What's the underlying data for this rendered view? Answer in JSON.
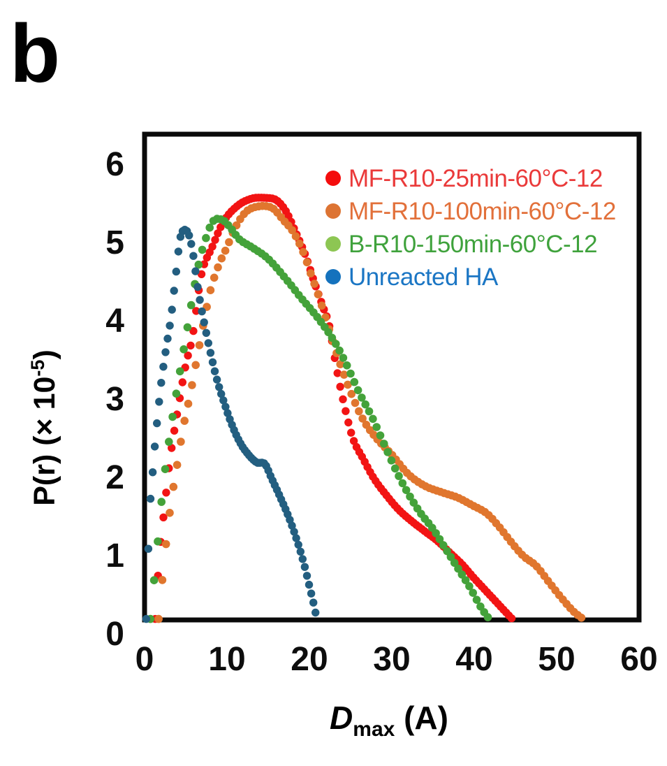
{
  "panel_label": "b",
  "chart_data": {
    "type": "scatter",
    "title": "",
    "xlabel": {
      "symbol": "D",
      "subscript": "max",
      "unit": " (A)"
    },
    "ylabel": {
      "prefix": "P(r) (× 10",
      "superscript": "-5",
      "suffix": ")"
    },
    "xlim": [
      0,
      60
    ],
    "ylim": [
      0,
      6
    ],
    "x_ticks": [
      0,
      10,
      20,
      30,
      40,
      50,
      60
    ],
    "y_ticks": [
      0,
      1,
      2,
      3,
      4,
      5,
      6
    ],
    "grid": false,
    "legend_position": "top-right-inside",
    "axis_color": "#0a0a0a",
    "series": [
      {
        "name": "MF-R10-25min-60°C-12",
        "curve_color": "#f21414",
        "legend_dot_color": "#f40d0d",
        "text_color": "#ea3a3a",
        "marker_step": 0.33,
        "marker_radius": 5.7,
        "points": [
          [
            1.3,
            0.2
          ],
          [
            1.8,
            1.0
          ],
          [
            2.4,
            1.6
          ],
          [
            3.1,
            2.25
          ],
          [
            4.0,
            2.85
          ],
          [
            5.0,
            3.45
          ],
          [
            5.8,
            3.8
          ],
          [
            6.9,
            4.6
          ],
          [
            8.2,
            4.95
          ],
          [
            9.6,
            5.28
          ],
          [
            11.3,
            5.48
          ],
          [
            13.0,
            5.57
          ],
          [
            14.5,
            5.58
          ],
          [
            16.0,
            5.55
          ],
          [
            17.2,
            5.4
          ],
          [
            18.3,
            5.15
          ],
          [
            19.5,
            4.85
          ],
          [
            20.6,
            4.5
          ],
          [
            21.6,
            4.2
          ],
          [
            22.4,
            3.95
          ],
          [
            23.3,
            3.4
          ],
          [
            24.3,
            2.9
          ],
          [
            25.3,
            2.5
          ],
          [
            26.5,
            2.25
          ],
          [
            27.8,
            2.0
          ],
          [
            29.2,
            1.8
          ],
          [
            30.8,
            1.6
          ],
          [
            32.4,
            1.45
          ],
          [
            34.0,
            1.32
          ],
          [
            35.5,
            1.2
          ],
          [
            37.0,
            1.05
          ],
          [
            38.5,
            0.9
          ],
          [
            40.0,
            0.72
          ],
          [
            41.5,
            0.55
          ],
          [
            43.0,
            0.38
          ],
          [
            44.6,
            0.2
          ]
        ]
      },
      {
        "name": "MF-R10-100min-60°C-12",
        "curve_color": "#e0762e",
        "legend_dot_color": "#dd7433",
        "text_color": "#e2703a",
        "marker_step": 0.45,
        "marker_radius": 5.8,
        "points": [
          [
            1.7,
            0.2
          ],
          [
            2.2,
            0.75
          ],
          [
            2.7,
            1.25
          ],
          [
            3.3,
            1.75
          ],
          [
            4.0,
            2.2
          ],
          [
            4.7,
            2.65
          ],
          [
            5.5,
            3.05
          ],
          [
            6.3,
            3.5
          ],
          [
            7.2,
            4.0
          ],
          [
            8.0,
            4.4
          ],
          [
            9.0,
            4.72
          ],
          [
            10.0,
            4.95
          ],
          [
            11.0,
            5.2
          ],
          [
            12.3,
            5.4
          ],
          [
            13.8,
            5.47
          ],
          [
            15.5,
            5.45
          ],
          [
            16.8,
            5.3
          ],
          [
            18.0,
            5.15
          ],
          [
            19.2,
            4.9
          ],
          [
            20.2,
            4.6
          ],
          [
            21.2,
            4.3
          ],
          [
            22.4,
            3.9
          ],
          [
            23.6,
            3.5
          ],
          [
            25.0,
            3.1
          ],
          [
            26.5,
            2.75
          ],
          [
            28.2,
            2.5
          ],
          [
            30.0,
            2.3
          ],
          [
            32.0,
            2.05
          ],
          [
            34.0,
            1.9
          ],
          [
            36.0,
            1.82
          ],
          [
            38.0,
            1.75
          ],
          [
            39.8,
            1.65
          ],
          [
            41.5,
            1.55
          ],
          [
            43.0,
            1.38
          ],
          [
            44.5,
            1.18
          ],
          [
            46.0,
            1.0
          ],
          [
            47.5,
            0.88
          ],
          [
            49.0,
            0.68
          ],
          [
            50.5,
            0.48
          ],
          [
            52.0,
            0.3
          ],
          [
            53.2,
            0.2
          ]
        ]
      },
      {
        "name": "B-R10-150min-60°C-12",
        "curve_color": "#44a23a",
        "legend_dot_color": "#8dc653",
        "text_color": "#3fa23c",
        "marker_step": 0.45,
        "marker_radius": 5.8,
        "points": [
          [
            0.7,
            0.2
          ],
          [
            1.2,
            0.75
          ],
          [
            1.7,
            1.3
          ],
          [
            2.2,
            1.85
          ],
          [
            2.8,
            2.35
          ],
          [
            3.5,
            2.85
          ],
          [
            4.2,
            3.3
          ],
          [
            5.0,
            3.8
          ],
          [
            5.8,
            4.3
          ],
          [
            6.6,
            4.75
          ],
          [
            7.4,
            5.05
          ],
          [
            8.3,
            5.28
          ],
          [
            9.4,
            5.3
          ],
          [
            10.4,
            5.2
          ],
          [
            11.5,
            5.05
          ],
          [
            13.0,
            4.95
          ],
          [
            15.0,
            4.8
          ],
          [
            17.5,
            4.5
          ],
          [
            19.0,
            4.3
          ],
          [
            21.0,
            4.05
          ],
          [
            23.0,
            3.75
          ],
          [
            24.5,
            3.45
          ],
          [
            26.0,
            3.1
          ],
          [
            27.5,
            2.8
          ],
          [
            29.0,
            2.45
          ],
          [
            30.5,
            2.1
          ],
          [
            32.0,
            1.8
          ],
          [
            33.5,
            1.55
          ],
          [
            35.0,
            1.35
          ],
          [
            36.5,
            1.1
          ],
          [
            38.0,
            0.85
          ],
          [
            39.5,
            0.6
          ],
          [
            40.8,
            0.35
          ],
          [
            41.8,
            0.2
          ]
        ]
      },
      {
        "name": "Unreacted HA",
        "curve_color": "#235e80",
        "legend_dot_color": "#1472bd",
        "text_color": "#1b76c4",
        "marker_step": 0.26,
        "marker_radius": 5.7,
        "points": [
          [
            0.2,
            0.2
          ],
          [
            0.6,
            1.5
          ],
          [
            1.0,
            2.1
          ],
          [
            1.5,
            2.7
          ],
          [
            2.0,
            3.2
          ],
          [
            2.6,
            3.65
          ],
          [
            3.2,
            4.05
          ],
          [
            3.8,
            4.6
          ],
          [
            4.3,
            5.05
          ],
          [
            4.8,
            5.17
          ],
          [
            5.4,
            5.1
          ],
          [
            5.9,
            4.85
          ],
          [
            6.5,
            4.4
          ],
          [
            7.2,
            4.0
          ],
          [
            8.0,
            3.6
          ],
          [
            8.8,
            3.25
          ],
          [
            9.6,
            2.98
          ],
          [
            10.6,
            2.68
          ],
          [
            11.6,
            2.45
          ],
          [
            12.6,
            2.3
          ],
          [
            13.6,
            2.2
          ],
          [
            14.6,
            2.18
          ],
          [
            15.4,
            2.0
          ],
          [
            16.4,
            1.77
          ],
          [
            17.5,
            1.5
          ],
          [
            18.5,
            1.2
          ],
          [
            19.3,
            0.92
          ],
          [
            20.0,
            0.62
          ],
          [
            20.5,
            0.4
          ],
          [
            20.9,
            0.2
          ]
        ]
      }
    ]
  }
}
